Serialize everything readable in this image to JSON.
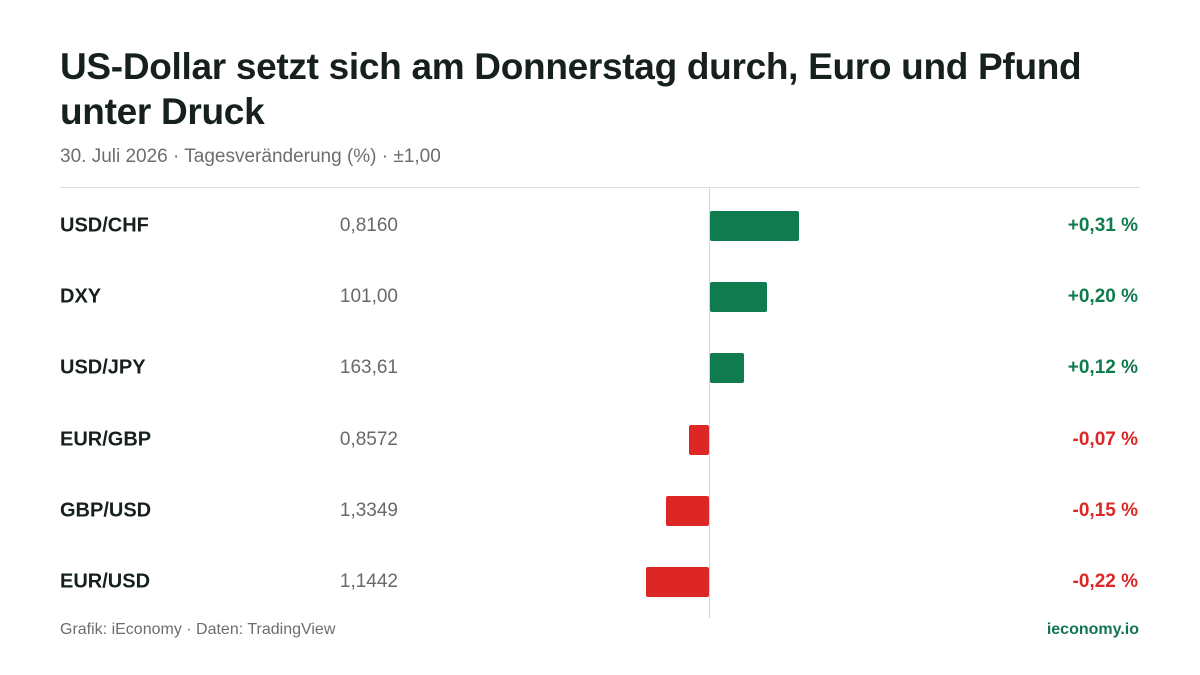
{
  "title": "US-Dollar setzt sich am Donnerstag durch, Euro und Pfund unter Druck",
  "subtitle": "30. Juli 2026 · Tagesveränderung (%) · ±1,00",
  "footer": {
    "source": "Grafik: iEconomy · Daten: TradingView",
    "brand": "ieconomy.io"
  },
  "colors": {
    "positive": "#0f7b4e",
    "negative": "#dd2727",
    "brand": "#147552"
  },
  "chart_data": {
    "type": "bar",
    "orientation": "horizontal",
    "categories": [
      "USD/CHF",
      "DXY",
      "USD/JPY",
      "EUR/GBP",
      "GBP/USD",
      "EUR/USD"
    ],
    "rates": [
      "0,8160",
      "101,00",
      "163,61",
      "0,8572",
      "1,3349",
      "1,1442"
    ],
    "values": [
      0.31,
      0.2,
      0.12,
      -0.07,
      -0.15,
      -0.22
    ],
    "value_labels": [
      "+0,31 %",
      "+0,20 %",
      "+0,12 %",
      "-0,07 %",
      "-0,15 %",
      "-0,22 %"
    ],
    "xlim": [
      -1.0,
      1.0
    ],
    "unit": "%"
  }
}
